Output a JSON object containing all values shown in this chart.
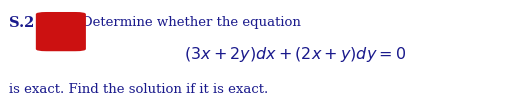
{
  "background_color": "#ffffff",
  "label_s2": "S.2",
  "red_box_color": "#cc1111",
  "text_color": "#1a1a8c",
  "line1": "Determine whether the equation",
  "line2_raw": "$(3x + 2y)dx + (2x + y)dy = 0$",
  "line3": "is exact. Find the solution if it is exact.",
  "fontsize_label": 10.5,
  "fontsize_text": 9.5,
  "fontsize_eq": 11.5
}
